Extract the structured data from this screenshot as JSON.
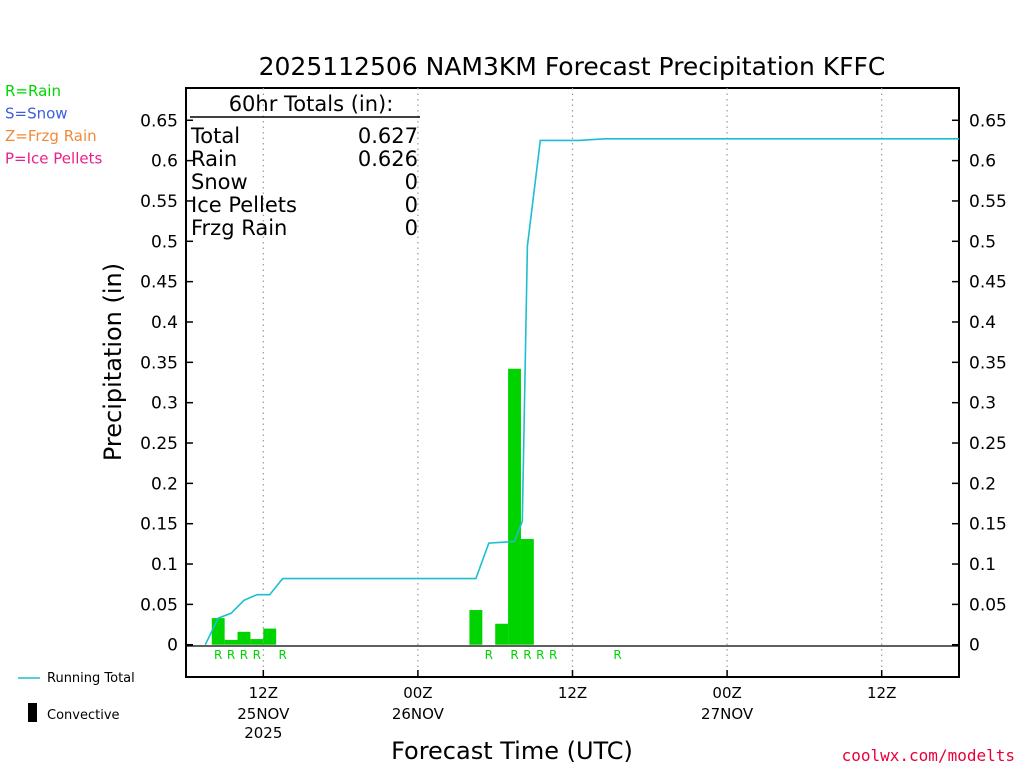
{
  "chart_data": {
    "type": "bar",
    "title": "2025112506 NAM3KM Forecast Precipitation KFFC",
    "xlabel": "Forecast Time (UTC)",
    "ylabel": "Precipitation (in)",
    "ylim": [
      -0.04,
      0.69
    ],
    "xlim_hours": [
      -2.5,
      57.5
    ],
    "y_ticks": [
      "0",
      "0.05",
      "0.1",
      "0.15",
      "0.2",
      "0.25",
      "0.3",
      "0.35",
      "0.4",
      "0.45",
      "0.5",
      "0.55",
      "0.6",
      "0.65"
    ],
    "y_tick_values": [
      0,
      0.05,
      0.1,
      0.15,
      0.2,
      0.25,
      0.3,
      0.35,
      0.4,
      0.45,
      0.5,
      0.55,
      0.6,
      0.65
    ],
    "x_ticks": [
      {
        "hour": 3.5,
        "label": "12Z",
        "date": "25NOV",
        "year": "2025"
      },
      {
        "hour": 15.5,
        "label": "00Z",
        "date": "26NOV",
        "year": ""
      },
      {
        "hour": 27.5,
        "label": "12Z",
        "date": "",
        "year": ""
      },
      {
        "hour": 39.5,
        "label": "00Z",
        "date": "27NOV",
        "year": ""
      },
      {
        "hour": 51.5,
        "label": "12Z",
        "date": "",
        "year": ""
      }
    ],
    "grid": "vertical-dotted",
    "bars": {
      "hours": [
        0,
        1,
        2,
        3,
        4,
        20,
        22,
        23,
        24
      ],
      "values": [
        0.033,
        0.006,
        0.016,
        0.007,
        0.02,
        0.043,
        0.026,
        0.342,
        0.131
      ]
    },
    "precip_type_labels": [
      {
        "hour": 0,
        "text": "R"
      },
      {
        "hour": 1,
        "text": "R"
      },
      {
        "hour": 2,
        "text": "R"
      },
      {
        "hour": 3,
        "text": "R"
      },
      {
        "hour": 5,
        "text": "R"
      },
      {
        "hour": 21,
        "text": "R"
      },
      {
        "hour": 23,
        "text": "R"
      },
      {
        "hour": 24,
        "text": "R"
      },
      {
        "hour": 25,
        "text": "R"
      },
      {
        "hour": 26,
        "text": "R"
      },
      {
        "hour": 31,
        "text": "R"
      }
    ],
    "running_total": {
      "hours": [
        -1,
        0,
        1,
        2,
        3,
        4,
        5,
        20,
        21,
        22,
        23,
        23.6,
        24,
        25,
        28,
        30,
        57.5
      ],
      "values": [
        0,
        0.033,
        0.039,
        0.055,
        0.062,
        0.062,
        0.082,
        0.082,
        0.126,
        0.127,
        0.128,
        0.153,
        0.494,
        0.625,
        0.625,
        0.627,
        0.627
      ]
    },
    "series_colors": {
      "precip": "#00d400",
      "running_total": "#1bbfd0"
    }
  },
  "totals_box": {
    "header": "60hr Totals (in):",
    "rows": [
      {
        "label": "Total",
        "value": "0.627"
      },
      {
        "label": "Rain",
        "value": "0.626"
      },
      {
        "label": "Snow",
        "value": "0"
      },
      {
        "label": "Ice Pellets",
        "value": "0"
      },
      {
        "label": "Frzg Rain",
        "value": "0"
      }
    ]
  },
  "type_legend": [
    {
      "text": "R=Rain",
      "color": "#00d400"
    },
    {
      "text": "S=Snow",
      "color": "#3a5fe0"
    },
    {
      "text": "Z=Frzg Rain",
      "color": "#f08a3a"
    },
    {
      "text": "P=Ice Pellets",
      "color": "#e8208a"
    }
  ],
  "bottom_legend": {
    "running_total": "Running Total",
    "convective": "Convective"
  },
  "credit": "coolwx.com/modelts"
}
